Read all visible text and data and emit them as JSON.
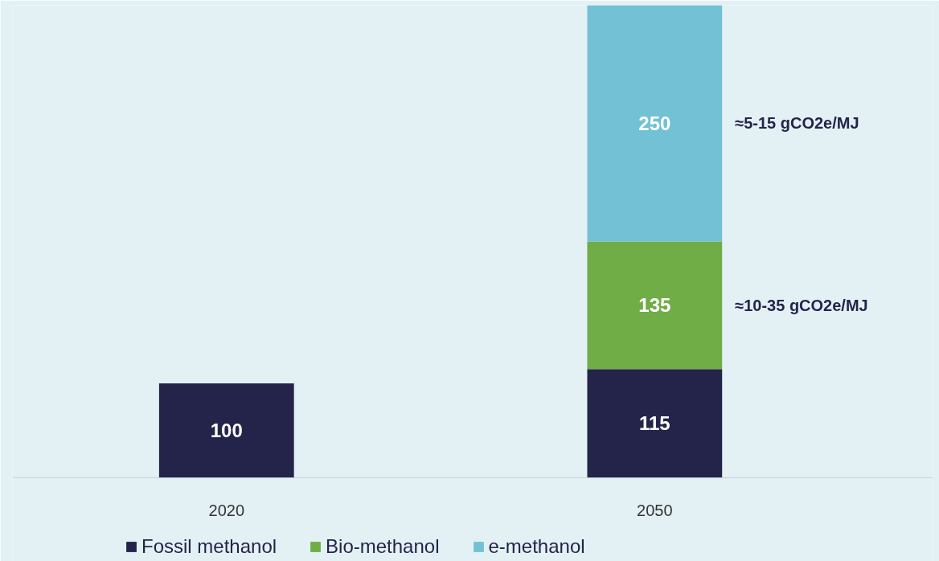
{
  "chart_data": {
    "type": "bar",
    "stacked": true,
    "categories": [
      "2020",
      "2050"
    ],
    "series": [
      {
        "name": "Fossil methanol",
        "color": "#24244a",
        "values": [
          100,
          115
        ]
      },
      {
        "name": "Bio-methanol",
        "color": "#70ad47",
        "values": [
          null,
          135
        ]
      },
      {
        "name": "e-methanol",
        "color": "#72c1d4",
        "values": [
          null,
          250
        ]
      }
    ],
    "data_labels": true,
    "grid": false,
    "legend": "bottom",
    "tick_labels": "x",
    "annotations": [
      "≈5-15 gCO2e/MJ",
      "≈10-35 gCO2e/MJ"
    ]
  }
}
